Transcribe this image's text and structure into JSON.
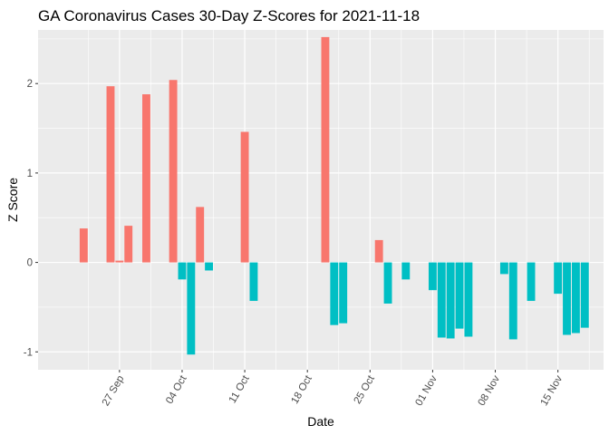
{
  "chart_data": {
    "type": "bar",
    "title": "GA Coronavirus Cases 30-Day Z-Scores for 2021-11-18",
    "xlabel": "Date",
    "ylabel": "Z Score",
    "x_start": "2021-09-20",
    "x_end": "2021-11-18",
    "ylim": [
      -1.2,
      2.6
    ],
    "y_ticks": [
      -1,
      0,
      1,
      2
    ],
    "x_ticks": [
      {
        "date": "2021-09-27",
        "label": "27 Sep"
      },
      {
        "date": "2021-10-04",
        "label": "04 Oct"
      },
      {
        "date": "2021-10-11",
        "label": "11 Oct"
      },
      {
        "date": "2021-10-18",
        "label": "18 Oct"
      },
      {
        "date": "2021-10-25",
        "label": "25 Oct"
      },
      {
        "date": "2021-11-01",
        "label": "01 Nov"
      },
      {
        "date": "2021-11-08",
        "label": "08 Nov"
      },
      {
        "date": "2021-11-15",
        "label": "15 Nov"
      }
    ],
    "positive_color": "#F8766D",
    "negative_color": "#00BFC4",
    "series": [
      {
        "date": "2021-09-23",
        "value": 0.38
      },
      {
        "date": "2021-09-26",
        "value": 1.97
      },
      {
        "date": "2021-09-27",
        "value": 0.02
      },
      {
        "date": "2021-09-28",
        "value": 0.41
      },
      {
        "date": "2021-09-30",
        "value": 1.88
      },
      {
        "date": "2021-10-03",
        "value": 2.04
      },
      {
        "date": "2021-10-04",
        "value": -0.19
      },
      {
        "date": "2021-10-05",
        "value": -1.03
      },
      {
        "date": "2021-10-06",
        "value": 0.62
      },
      {
        "date": "2021-10-07",
        "value": -0.09
      },
      {
        "date": "2021-10-11",
        "value": 1.46
      },
      {
        "date": "2021-10-12",
        "value": -0.43
      },
      {
        "date": "2021-10-20",
        "value": 2.52
      },
      {
        "date": "2021-10-21",
        "value": -0.7
      },
      {
        "date": "2021-10-22",
        "value": -0.68
      },
      {
        "date": "2021-10-26",
        "value": 0.25
      },
      {
        "date": "2021-10-27",
        "value": -0.46
      },
      {
        "date": "2021-10-29",
        "value": -0.19
      },
      {
        "date": "2021-11-01",
        "value": -0.31
      },
      {
        "date": "2021-11-02",
        "value": -0.84
      },
      {
        "date": "2021-11-03",
        "value": -0.85
      },
      {
        "date": "2021-11-04",
        "value": -0.74
      },
      {
        "date": "2021-11-05",
        "value": -0.83
      },
      {
        "date": "2021-11-09",
        "value": -0.13
      },
      {
        "date": "2021-11-10",
        "value": -0.86
      },
      {
        "date": "2021-11-12",
        "value": -0.43
      },
      {
        "date": "2021-11-15",
        "value": -0.35
      },
      {
        "date": "2021-11-16",
        "value": -0.81
      },
      {
        "date": "2021-11-17",
        "value": -0.79
      },
      {
        "date": "2021-11-18",
        "value": -0.73
      }
    ]
  }
}
